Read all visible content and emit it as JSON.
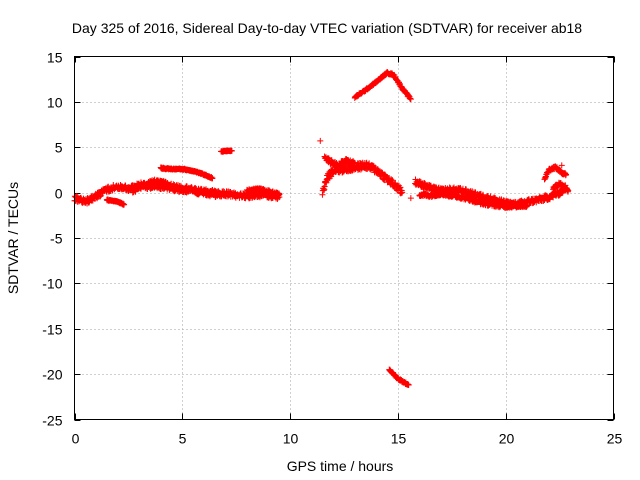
{
  "chart_data": {
    "type": "scatter",
    "title": "Day 325 of 2016, Sidereal Day-to-day VTEC variation (SDTVAR) for receiver ab18",
    "xlabel": "GPS time / hours",
    "ylabel": "SDTVAR / TECUs",
    "xlim": [
      0,
      25
    ],
    "ylim": [
      -25,
      15
    ],
    "xticks": [
      0,
      5,
      10,
      15,
      20,
      25
    ],
    "yticks": [
      -25,
      -20,
      -15,
      -10,
      -5,
      0,
      5,
      10,
      15
    ],
    "grid": true,
    "marker": "+",
    "color": "#ff0000",
    "series": [
      {
        "name": "SDTVAR",
        "segments": [
          {
            "points": [
              [
                0.0,
                -0.6
              ],
              [
                0.5,
                -1.0
              ],
              [
                1.0,
                -0.4
              ],
              [
                1.5,
                0.3
              ],
              [
                2.0,
                0.7
              ],
              [
                2.5,
                0.4
              ],
              [
                3.0,
                0.9
              ],
              [
                3.5,
                0.6
              ],
              [
                4.0,
                0.7
              ],
              [
                4.5,
                0.5
              ],
              [
                5.0,
                0.3
              ],
              [
                5.5,
                0.2
              ],
              [
                6.0,
                0.0
              ],
              [
                6.5,
                -0.2
              ],
              [
                7.0,
                -0.1
              ],
              [
                7.5,
                -0.3
              ],
              [
                8.0,
                -0.4
              ],
              [
                8.5,
                -0.2
              ],
              [
                9.0,
                -0.3
              ],
              [
                9.5,
                -0.5
              ]
            ],
            "spread": 0.6
          },
          {
            "points": [
              [
                1.5,
                -0.8
              ],
              [
                2.0,
                -1.0
              ],
              [
                2.3,
                -1.3
              ]
            ],
            "spread": 0.15
          },
          {
            "points": [
              [
                2.7,
                0.2
              ],
              [
                3.2,
                0.8
              ],
              [
                3.7,
                1.2
              ],
              [
                4.2,
                1.0
              ],
              [
                4.7,
                0.6
              ],
              [
                5.2,
                0.5
              ],
              [
                5.7,
                0.2
              ],
              [
                6.2,
                0.1
              ],
              [
                6.7,
                0.0
              ]
            ],
            "spread": 0.5
          },
          {
            "points": [
              [
                4.0,
                2.7
              ],
              [
                4.5,
                2.6
              ],
              [
                5.0,
                2.6
              ],
              [
                5.5,
                2.4
              ],
              [
                6.0,
                2.0
              ],
              [
                6.4,
                1.6
              ]
            ],
            "spread": 0.15
          },
          {
            "points": [
              [
                6.8,
                4.5
              ],
              [
                7.0,
                4.6
              ],
              [
                7.3,
                4.6
              ]
            ],
            "spread": 0.1
          },
          {
            "points": [
              [
                8.0,
                0.2
              ],
              [
                8.5,
                0.4
              ],
              [
                9.0,
                0.1
              ],
              [
                9.5,
                -0.2
              ]
            ],
            "spread": 0.3
          },
          {
            "points": [
              [
                11.5,
                0.0
              ],
              [
                11.7,
                1.5
              ],
              [
                12.0,
                2.5
              ],
              [
                12.5,
                2.6
              ],
              [
                13.0,
                2.8
              ],
              [
                13.5,
                3.0
              ],
              [
                14.0,
                2.5
              ],
              [
                14.5,
                1.5
              ],
              [
                15.0,
                0.5
              ],
              [
                15.2,
                0.0
              ]
            ],
            "spread": 0.8
          },
          {
            "points": [
              [
                11.6,
                4.0
              ],
              [
                11.8,
                3.5
              ],
              [
                12.2,
                3.0
              ],
              [
                12.6,
                3.5
              ],
              [
                13.0,
                3.2
              ]
            ],
            "spread": 0.5
          },
          {
            "points": [
              [
                13.0,
                10.5
              ],
              [
                13.5,
                11.3
              ],
              [
                14.0,
                12.2
              ],
              [
                14.5,
                13.2
              ],
              [
                14.8,
                13.0
              ],
              [
                15.2,
                11.5
              ],
              [
                15.6,
                10.3
              ]
            ],
            "spread": 0.2
          },
          {
            "points": [
              [
                14.6,
                -19.5
              ],
              [
                15.0,
                -20.5
              ],
              [
                15.5,
                -21.2
              ]
            ],
            "spread": 0.2
          },
          {
            "points": [
              [
                15.8,
                1.2
              ],
              [
                16.5,
                0.5
              ],
              [
                17.0,
                0.2
              ],
              [
                17.5,
                0.3
              ],
              [
                18.0,
                0.2
              ],
              [
                18.5,
                -0.2
              ],
              [
                19.0,
                -0.5
              ],
              [
                19.5,
                -0.8
              ],
              [
                20.0,
                -1.2
              ],
              [
                20.5,
                -1.3
              ],
              [
                21.0,
                -1.0
              ],
              [
                21.5,
                -0.8
              ],
              [
                22.0,
                -0.5
              ],
              [
                22.5,
                0.0
              ],
              [
                22.8,
                0.5
              ]
            ],
            "spread": 0.6
          },
          {
            "points": [
              [
                16.0,
                -0.2
              ],
              [
                16.5,
                -0.3
              ],
              [
                17.0,
                -0.1
              ],
              [
                17.5,
                -0.3
              ],
              [
                18.0,
                -0.5
              ],
              [
                19.0,
                -1.2
              ],
              [
                20.0,
                -1.5
              ],
              [
                21.0,
                -1.4
              ]
            ],
            "spread": 0.4
          },
          {
            "points": [
              [
                21.8,
                1.5
              ],
              [
                22.0,
                2.5
              ],
              [
                22.3,
                2.8
              ],
              [
                22.6,
                2.2
              ],
              [
                22.8,
                2.0
              ]
            ],
            "spread": 0.3
          },
          {
            "points": [
              [
                22.2,
                0.5
              ],
              [
                22.5,
                1.0
              ],
              [
                22.8,
                0.6
              ],
              [
                22.9,
                0.2
              ]
            ],
            "spread": 0.4
          }
        ],
        "isolated": [
          [
            11.4,
            5.7
          ],
          [
            15.6,
            -0.6
          ],
          [
            22.6,
            3.0
          ]
        ]
      }
    ]
  }
}
